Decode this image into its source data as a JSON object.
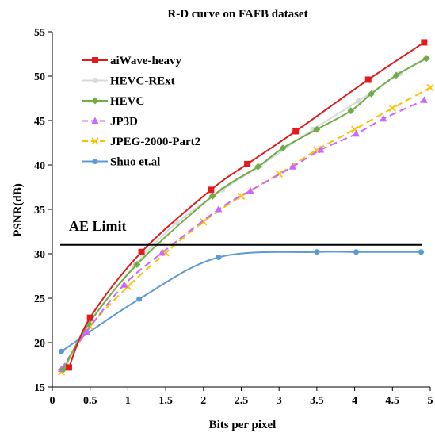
{
  "chart_data": {
    "type": "line",
    "title": "R-D curve on FAFB dataset",
    "xlabel": "Bits per pixel",
    "ylabel": "PSNR(dB)",
    "xlim": [
      0,
      5
    ],
    "ylim": [
      15,
      55
    ],
    "xticks": [
      0,
      0.5,
      1,
      1.5,
      2,
      2.5,
      3,
      3.5,
      4,
      4.5,
      5
    ],
    "yticks": [
      15,
      20,
      25,
      30,
      35,
      40,
      45,
      50,
      55
    ],
    "grid": false,
    "legend_position": "top-left",
    "annotations": [
      {
        "text": "AE Limit",
        "y": 31,
        "type": "horizontal-line",
        "color": "#000000"
      }
    ],
    "series": [
      {
        "name": "aiWave-heavy",
        "color": "#e31a1c",
        "marker": "square",
        "dash": "solid",
        "points": [
          [
            0.22,
            17.2
          ],
          [
            0.5,
            22.8
          ],
          [
            1.18,
            30.2
          ],
          [
            2.1,
            37.2
          ],
          [
            2.58,
            40.1
          ],
          [
            3.22,
            43.8
          ],
          [
            4.18,
            49.6
          ],
          [
            4.92,
            53.8
          ]
        ]
      },
      {
        "name": "HEVC-RExt",
        "color": "#d9d9d9",
        "marker": "circle",
        "dash": "solid",
        "points": [
          [
            0.18,
            17.4
          ],
          [
            0.5,
            22.3
          ],
          [
            1.1,
            28.8
          ],
          [
            1.65,
            33.5
          ],
          [
            2.25,
            37.2
          ],
          [
            2.75,
            39.9
          ],
          [
            3.45,
            44.0
          ],
          [
            4.05,
            47.2
          ],
          [
            4.6,
            50.3
          ],
          [
            4.95,
            52.0
          ]
        ]
      },
      {
        "name": "HEVC",
        "color": "#70ad47",
        "marker": "diamond",
        "dash": "solid",
        "points": [
          [
            0.15,
            17.0
          ],
          [
            0.48,
            22.1
          ],
          [
            1.12,
            28.8
          ],
          [
            2.12,
            36.5
          ],
          [
            2.72,
            39.8
          ],
          [
            3.05,
            41.9
          ],
          [
            3.5,
            44.0
          ],
          [
            3.95,
            46.1
          ],
          [
            4.22,
            48.0
          ],
          [
            4.55,
            50.1
          ],
          [
            4.95,
            52.0
          ]
        ]
      },
      {
        "name": "JP3D",
        "color": "#cc66ff",
        "marker": "triangle",
        "dash": "dash",
        "points": [
          [
            0.12,
            17.0
          ],
          [
            0.45,
            21.2
          ],
          [
            0.95,
            26.5
          ],
          [
            1.45,
            30.1
          ],
          [
            2.2,
            35.0
          ],
          [
            2.62,
            37.1
          ],
          [
            3.18,
            39.8
          ],
          [
            3.55,
            41.7
          ],
          [
            4.02,
            43.5
          ],
          [
            4.38,
            45.2
          ],
          [
            4.92,
            47.3
          ]
        ]
      },
      {
        "name": "JPEG-2000-Part2",
        "color": "#ffc000",
        "marker": "cross",
        "dash": "dash",
        "points": [
          [
            0.12,
            16.7
          ],
          [
            0.5,
            21.8
          ],
          [
            1.0,
            26.3
          ],
          [
            1.5,
            30.1
          ],
          [
            2.0,
            33.6
          ],
          [
            2.5,
            36.5
          ],
          [
            3.0,
            39.0
          ],
          [
            3.5,
            41.7
          ],
          [
            4.0,
            44.0
          ],
          [
            4.5,
            46.4
          ],
          [
            5.0,
            48.7
          ]
        ]
      },
      {
        "name": "Shuo et.al",
        "color": "#5b9bd5",
        "marker": "circle",
        "dash": "solid",
        "points": [
          [
            0.12,
            19.0
          ],
          [
            1.15,
            24.9
          ],
          [
            2.2,
            29.6
          ],
          [
            3.5,
            30.2
          ],
          [
            4.02,
            30.2
          ],
          [
            4.88,
            30.2
          ]
        ]
      }
    ]
  }
}
